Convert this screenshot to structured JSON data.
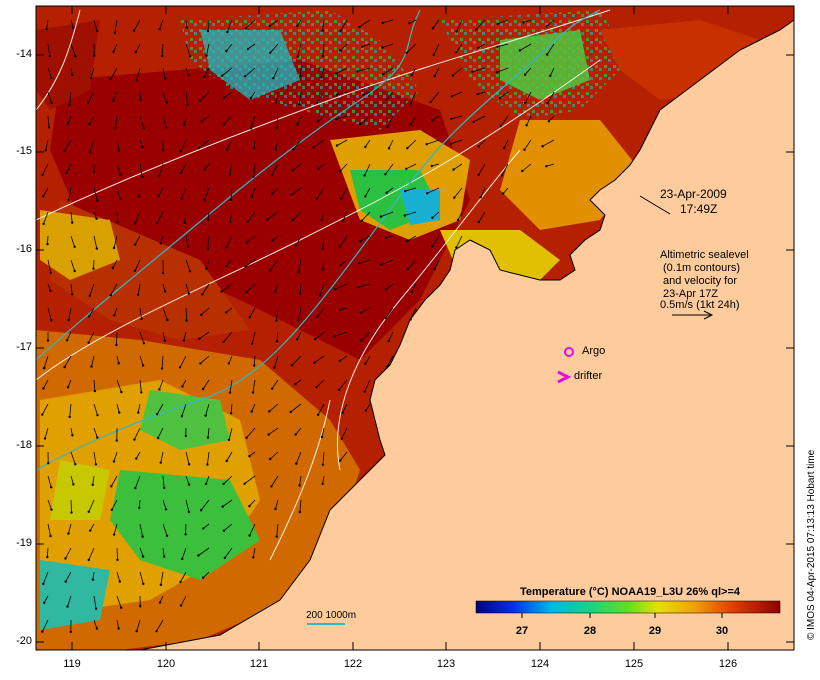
{
  "map": {
    "lat_ticks": [
      "-14",
      "-15",
      "-16",
      "-17",
      "-18",
      "-19",
      "-20"
    ],
    "lon_ticks": [
      "119",
      "120",
      "121",
      "122",
      "123",
      "124",
      "125",
      "126"
    ],
    "date": "23-Apr-2009",
    "time": "17:49Z",
    "altimetry_note": [
      "Altimetric sealevel",
      "(0.1m contours)",
      "and velocity for",
      "23-Apr 17Z",
      "0.5m/s (1kt 24h)"
    ],
    "legend_argo": "Argo",
    "legend_drifter": "drifter",
    "depth_contours_label": "200  1000m",
    "colorbar_title": "Temperature (°C) NOAA19_L3U 26% ql>=4",
    "colorbar_ticks": [
      "27",
      "28",
      "29",
      "30"
    ],
    "credit": "© IMOS 04-Apr-2015 07:13:13 Hobart time",
    "colors": {
      "land": "#fdcb9c",
      "warm_dark": "#9b0000",
      "warm": "#c22200",
      "mid_orange": "#e07000",
      "yellow": "#e8c000",
      "green": "#3cbf3c",
      "cyan": "#00c8d0",
      "argo": "#e010e0",
      "drifter": "#e010e0"
    }
  }
}
